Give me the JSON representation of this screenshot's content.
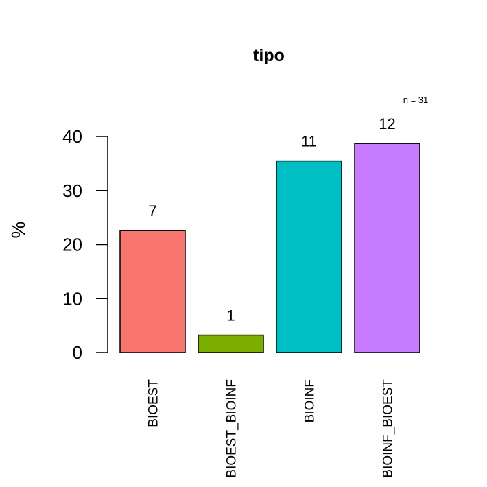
{
  "chart_data": {
    "type": "bar",
    "title": "tipo",
    "ylabel": "%",
    "xlabel": "",
    "n_label": "n = 31",
    "categories": [
      "BIOEST",
      "BIOEST_BIOINF",
      "BIOINF",
      "BIOINF_BIOEST"
    ],
    "counts": [
      "7",
      "1",
      "11",
      "12"
    ],
    "values": [
      22.58,
      3.23,
      35.48,
      38.71
    ],
    "colors": [
      "#F8766D",
      "#7CAE00",
      "#00BFC4",
      "#C77CFF"
    ],
    "ylim": [
      0,
      40
    ],
    "yticks": [
      "0",
      "10",
      "20",
      "30",
      "40"
    ],
    "grid": false,
    "legend": "none"
  }
}
